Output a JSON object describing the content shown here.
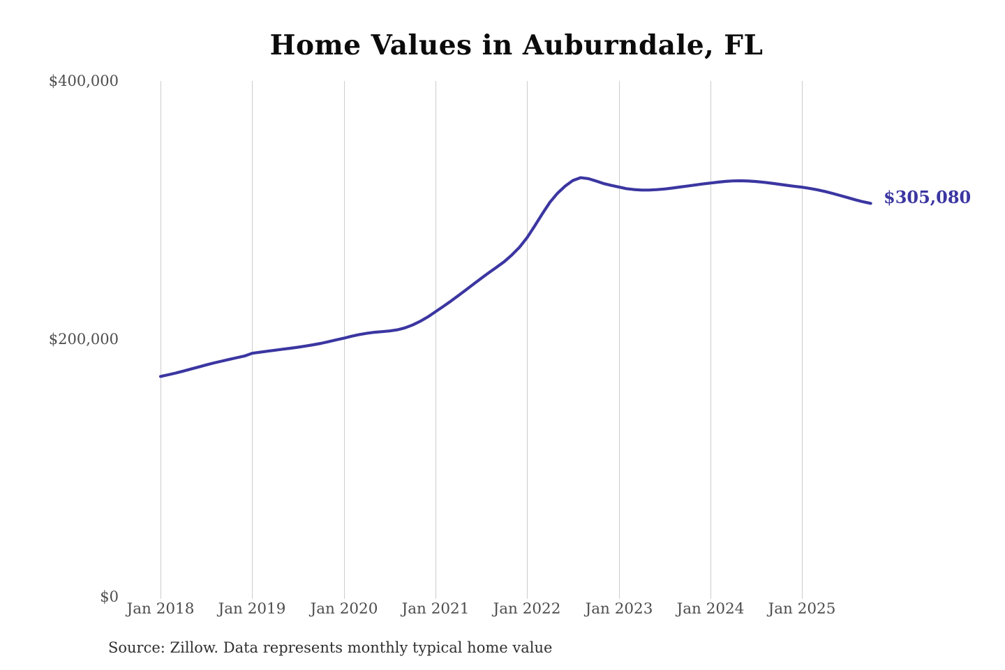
{
  "page": {
    "title": "Home Values in Auburndale, FL",
    "source_note": "Source: Zillow. Data represents monthly typical home value"
  },
  "colors": {
    "background": "#ffffff",
    "line": "#3b36a1",
    "grid": "#cccccc",
    "axis_label": "#4d4d4d",
    "title_text": "#0b0b0b",
    "source_text": "#303030",
    "end_label_text": "#3b36a1"
  },
  "chart_data": {
    "type": "line",
    "title": "Home Values in Auburndale, FL",
    "xlabel": "",
    "ylabel": "",
    "ylim": [
      0,
      400000
    ],
    "grid": "vertical-only",
    "legend": "none",
    "y_ticks": [
      {
        "value": 0,
        "label": "$0"
      },
      {
        "value": 200000,
        "label": "$200,000"
      },
      {
        "value": 400000,
        "label": "$400,000"
      }
    ],
    "x_ticks": [
      "Jan 2018",
      "Jan 2019",
      "Jan 2020",
      "Jan 2021",
      "Jan 2022",
      "Jan 2023",
      "Jan 2024",
      "Jan 2025"
    ],
    "series": [
      {
        "name": "Monthly typical home value",
        "start_month": "2018-01",
        "end_month": "2025-10",
        "months_per_point": 1,
        "end_value": 305080,
        "end_value_label": "$305,080",
        "values": [
          170800,
          172100,
          173500,
          175000,
          176600,
          178200,
          179800,
          181300,
          182700,
          184100,
          185400,
          186700,
          188800,
          189600,
          190400,
          191200,
          192000,
          192700,
          193500,
          194400,
          195400,
          196500,
          197800,
          199200,
          200500,
          202000,
          203300,
          204300,
          205100,
          205600,
          206100,
          207000,
          208500,
          210700,
          213600,
          217000,
          221000,
          225000,
          229200,
          233500,
          238000,
          242500,
          247000,
          251300,
          255500,
          259800,
          265000,
          271000,
          278500,
          287500,
          297000,
          306000,
          313000,
          318500,
          322800,
          325000,
          324300,
          322500,
          320500,
          319000,
          317800,
          316500,
          315800,
          315400,
          315400,
          315700,
          316200,
          316900,
          317700,
          318500,
          319300,
          320100,
          320800,
          321500,
          322100,
          322500,
          322600,
          322400,
          322000,
          321400,
          320700,
          319900,
          319100,
          318300,
          317600,
          316700,
          315600,
          314300,
          312800,
          311200,
          309500,
          307800,
          306300,
          305080
        ]
      }
    ]
  }
}
